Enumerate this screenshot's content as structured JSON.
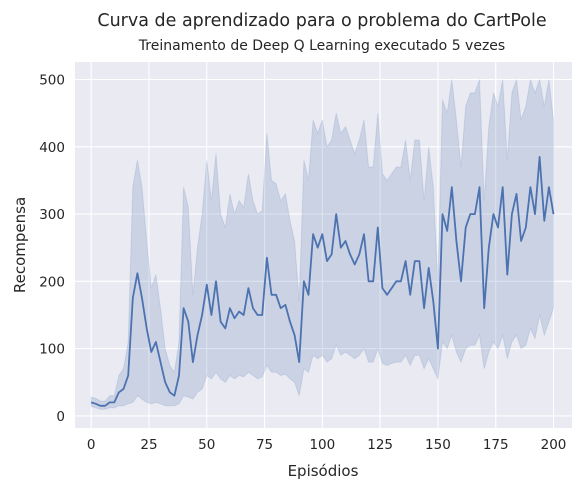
{
  "chart_data": {
    "type": "line",
    "title": "Curva de aprendizado para o problema do CartPole",
    "subtitle": "Treinamento de Deep Q Learning executado 5 vezes",
    "xlabel": "Episódios",
    "ylabel": "Recompensa",
    "xlim": [
      -7,
      208
    ],
    "ylim": [
      -18,
      526
    ],
    "x_ticks": [
      0,
      25,
      50,
      75,
      100,
      125,
      150,
      175,
      200
    ],
    "y_ticks": [
      0,
      100,
      200,
      300,
      400,
      500
    ],
    "grid": true,
    "legend": "none",
    "colors": {
      "line": "#4c72b0",
      "band": "#4c72b0",
      "background": "#eaeaf2",
      "grid": "#ffffff"
    },
    "series": [
      {
        "x": [
          0,
          2,
          4,
          6,
          8,
          10,
          12,
          14,
          16,
          18,
          20,
          22,
          24,
          26,
          28,
          30,
          32,
          34,
          36,
          38,
          40,
          42,
          44,
          46,
          48,
          50,
          52,
          54,
          56,
          58,
          60,
          62,
          64,
          66,
          68,
          70,
          72,
          74,
          76,
          78,
          80,
          82,
          84,
          86,
          88,
          90,
          92,
          94,
          96,
          98,
          100,
          102,
          104,
          106,
          108,
          110,
          112,
          114,
          116,
          118,
          120,
          122,
          124,
          126,
          128,
          130,
          132,
          134,
          136,
          138,
          140,
          142,
          144,
          146,
          148,
          150,
          152,
          154,
          156,
          158,
          160,
          162,
          164,
          166,
          168,
          170,
          172,
          174,
          176,
          178,
          180,
          182,
          184,
          186,
          188,
          190,
          192,
          194,
          196,
          198,
          200
        ],
        "y": [
          20,
          18,
          15,
          15,
          20,
          20,
          35,
          40,
          60,
          175,
          212,
          175,
          130,
          95,
          110,
          80,
          50,
          35,
          30,
          60,
          160,
          140,
          80,
          120,
          150,
          195,
          150,
          200,
          140,
          130,
          160,
          145,
          155,
          150,
          190,
          160,
          150,
          150,
          235,
          180,
          180,
          160,
          165,
          140,
          120,
          80,
          200,
          180,
          270,
          250,
          270,
          230,
          240,
          300,
          250,
          260,
          240,
          225,
          240,
          270,
          200,
          200,
          280,
          190,
          180,
          190,
          200,
          200,
          230,
          180,
          230,
          230,
          160,
          220,
          170,
          100,
          300,
          275,
          340,
          260,
          200,
          280,
          300,
          300,
          340,
          160,
          250,
          300,
          280,
          340,
          210,
          300,
          330,
          260,
          280,
          340,
          300,
          385,
          290,
          340,
          300
        ],
        "lo": [
          14,
          12,
          10,
          10,
          12,
          12,
          15,
          15,
          18,
          20,
          30,
          25,
          20,
          18,
          20,
          18,
          15,
          15,
          15,
          18,
          30,
          28,
          25,
          35,
          40,
          60,
          55,
          65,
          55,
          50,
          60,
          55,
          60,
          58,
          65,
          60,
          55,
          58,
          75,
          65,
          65,
          60,
          62,
          55,
          50,
          30,
          70,
          65,
          90,
          85,
          90,
          80,
          85,
          105,
          90,
          95,
          90,
          85,
          90,
          100,
          80,
          80,
          100,
          78,
          75,
          78,
          80,
          80,
          90,
          75,
          90,
          90,
          70,
          85,
          70,
          55,
          110,
          100,
          120,
          95,
          80,
          100,
          105,
          105,
          120,
          70,
          95,
          110,
          100,
          120,
          85,
          110,
          120,
          100,
          105,
          130,
          115,
          150,
          120,
          140,
          160
        ],
        "hi": [
          28,
          26,
          22,
          22,
          30,
          30,
          60,
          70,
          110,
          340,
          380,
          340,
          260,
          190,
          210,
          160,
          100,
          75,
          65,
          110,
          340,
          310,
          180,
          250,
          300,
          380,
          320,
          390,
          300,
          280,
          330,
          300,
          320,
          310,
          360,
          320,
          300,
          305,
          420,
          350,
          345,
          320,
          330,
          290,
          260,
          170,
          380,
          350,
          440,
          420,
          440,
          400,
          410,
          450,
          420,
          430,
          410,
          390,
          410,
          440,
          370,
          370,
          450,
          360,
          350,
          360,
          370,
          370,
          410,
          350,
          410,
          410,
          320,
          400,
          340,
          200,
          470,
          450,
          500,
          440,
          370,
          460,
          480,
          480,
          500,
          320,
          430,
          480,
          460,
          500,
          380,
          480,
          500,
          440,
          460,
          500,
          480,
          500,
          460,
          500,
          440
        ]
      }
    ]
  }
}
